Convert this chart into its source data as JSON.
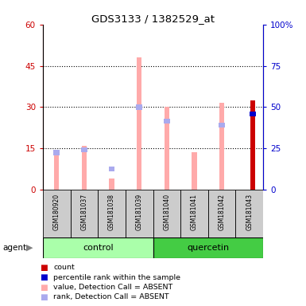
{
  "title": "GDS3133 / 1382529_at",
  "samples": [
    "GSM180920",
    "GSM181037",
    "GSM181038",
    "GSM181039",
    "GSM181040",
    "GSM181041",
    "GSM181042",
    "GSM181043"
  ],
  "groups": [
    "control",
    "control",
    "control",
    "control",
    "quercetin",
    "quercetin",
    "quercetin",
    "quercetin"
  ],
  "value_absent": [
    14.0,
    16.0,
    4.0,
    48.0,
    30.0,
    13.5,
    31.5,
    0.0
  ],
  "rank_absent": [
    13.5,
    14.5,
    7.5,
    30.0,
    25.0,
    0.0,
    23.5,
    0.0
  ],
  "count": [
    0,
    0,
    0,
    0,
    0,
    0,
    0,
    32.5
  ],
  "pct_rank": [
    0,
    0,
    0,
    0,
    0,
    0,
    0,
    27.5
  ],
  "ylim": [
    0,
    60
  ],
  "y2lim": [
    0,
    100
  ],
  "yticks": [
    0,
    15,
    30,
    45,
    60
  ],
  "y2ticks": [
    0,
    25,
    50,
    75,
    100
  ],
  "ylabel_color": "#cc0000",
  "y2label_color": "#0000cc",
  "sample_bg": "#cccccc",
  "control_color": "#aaffaa",
  "quercetin_color": "#44cc44",
  "color_value_absent": "#ffaaaa",
  "color_rank_absent": "#aaaaee",
  "color_count": "#cc0000",
  "color_pct": "#0000cc",
  "legend_items": [
    "count",
    "percentile rank within the sample",
    "value, Detection Call = ABSENT",
    "rank, Detection Call = ABSENT"
  ],
  "legend_colors": [
    "#cc0000",
    "#0000cc",
    "#ffaaaa",
    "#aaaaee"
  ],
  "agent_label": "agent"
}
